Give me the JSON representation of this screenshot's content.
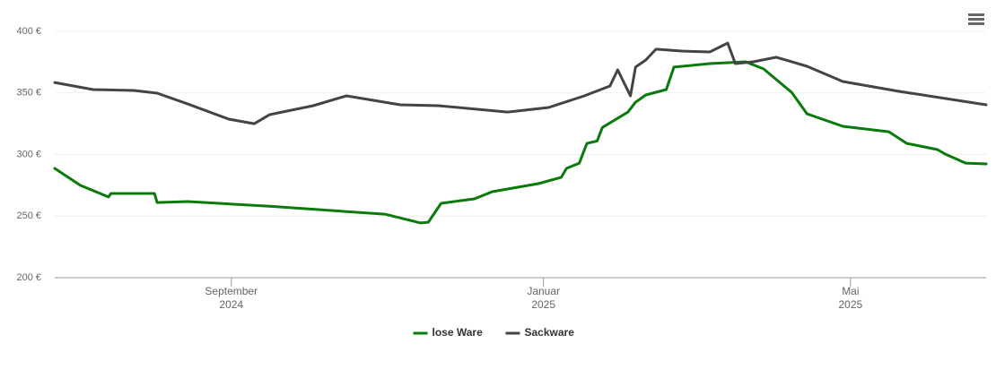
{
  "chart_data": {
    "type": "line",
    "ylim": [
      200,
      400
    ],
    "yticks": [
      {
        "value": 200,
        "label": "200 €"
      },
      {
        "value": 250,
        "label": "250 €"
      },
      {
        "value": 300,
        "label": "300 €"
      },
      {
        "value": 350,
        "label": "350 €"
      },
      {
        "value": 400,
        "label": "400 €"
      }
    ],
    "xlim": [
      "2024-06-24",
      "2025-06-23"
    ],
    "xticks": [
      {
        "value": "2024-09-01",
        "label": [
          "September",
          "2024"
        ]
      },
      {
        "value": "2025-01-01",
        "label": [
          "Januar",
          "2025"
        ]
      },
      {
        "value": "2025-05-01",
        "label": [
          "Mai",
          "2025"
        ]
      }
    ],
    "grid": true,
    "legend": "bottom",
    "series": [
      {
        "name": "lose Ware",
        "color": "#0a7a0a",
        "x": [
          "2024-06-24",
          "2024-07-04",
          "2024-07-15",
          "2024-07-16",
          "2024-08-02",
          "2024-08-03",
          "2024-08-15",
          "2024-09-16",
          "2024-10-31",
          "2024-11-14",
          "2024-11-17",
          "2024-11-22",
          "2024-12-05",
          "2024-12-12",
          "2024-12-30",
          "2025-01-08",
          "2025-01-10",
          "2025-01-15",
          "2025-01-18",
          "2025-01-22",
          "2025-01-24",
          "2025-02-03",
          "2025-02-06",
          "2025-02-10",
          "2025-02-18",
          "2025-02-21",
          "2025-03-07",
          "2025-03-21",
          "2025-03-28",
          "2025-04-08",
          "2025-04-14",
          "2025-04-28",
          "2025-05-16",
          "2025-05-23",
          "2025-06-04",
          "2025-06-07",
          "2025-06-15",
          "2025-06-23"
        ],
        "values": [
          288.7,
          275,
          265.5,
          268.4,
          268.4,
          261,
          261.8,
          258,
          251.6,
          244.4,
          245,
          260.4,
          264,
          269.8,
          276.4,
          281.5,
          288.7,
          293,
          309,
          311,
          322,
          334.5,
          342.5,
          348.4,
          352.7,
          371,
          373.8,
          375.3,
          369.5,
          350.5,
          333,
          322.9,
          318.5,
          309,
          304,
          300.4,
          293,
          292.4
        ]
      },
      {
        "name": "Sackware",
        "color": "#434348",
        "x": [
          "2024-06-24",
          "2024-07-09",
          "2024-07-25",
          "2024-08-03",
          "2024-08-15",
          "2024-08-31",
          "2024-09-10",
          "2024-09-16",
          "2024-10-03",
          "2024-10-16",
          "2024-11-06",
          "2024-11-21",
          "2024-12-18",
          "2025-01-03",
          "2025-01-17",
          "2025-01-27",
          "2025-01-30",
          "2025-02-04",
          "2025-02-06",
          "2025-02-10",
          "2025-02-14",
          "2025-02-24",
          "2025-03-07",
          "2025-03-14",
          "2025-03-17",
          "2025-03-24",
          "2025-04-02",
          "2025-04-14",
          "2025-04-28",
          "2025-05-20",
          "2025-06-23"
        ],
        "values": [
          358.5,
          352.7,
          352,
          349.8,
          341,
          328.7,
          325,
          332.4,
          339.6,
          347.6,
          340.4,
          339.6,
          334.5,
          338.2,
          347.6,
          355.6,
          368.7,
          347.6,
          371,
          376.7,
          385.5,
          384,
          383.3,
          390.5,
          373.8,
          375.3,
          379,
          371.6,
          359.3,
          351.3,
          340.4
        ]
      }
    ]
  }
}
